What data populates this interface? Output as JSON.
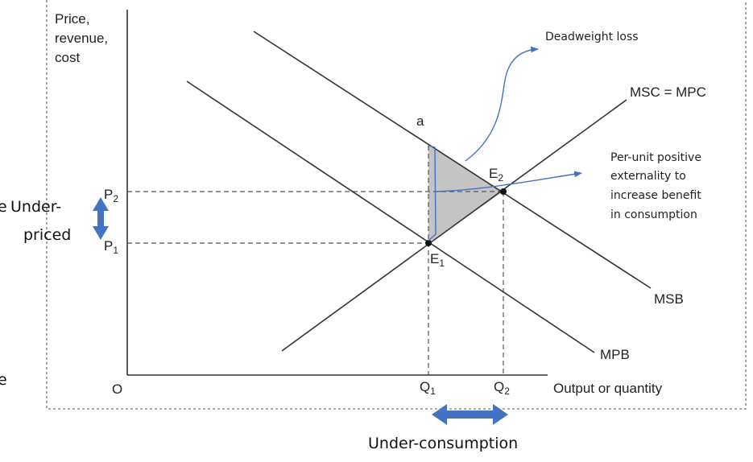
{
  "axes": {
    "y_label_lines": [
      "Price,",
      "revenue,",
      "cost"
    ],
    "x_label": "Output or quantity",
    "origin": "O"
  },
  "curves": {
    "msb": "MSB",
    "mpb": "MPB",
    "msc": "MSC = MPC"
  },
  "points": {
    "a": "a",
    "e1": {
      "base": "E",
      "sub": "1"
    },
    "e2": {
      "base": "E",
      "sub": "2"
    }
  },
  "ticks": {
    "p1": {
      "base": "P",
      "sub": "1"
    },
    "p2": {
      "base": "P",
      "sub": "2"
    },
    "q1": {
      "base": "Q",
      "sub": "1"
    },
    "q2": {
      "base": "Q",
      "sub": "2"
    }
  },
  "annotations": {
    "deadweight_loss": "Deadweight loss",
    "externality_lines": [
      "Per-unit positive",
      "externality to",
      "increase benefit",
      "in consumption"
    ],
    "underpriced_left_fragment": "e",
    "underpriced_lines": [
      "Under-",
      "priced"
    ],
    "bottom_left_fragment": "e",
    "under_consumption": "Under-consumption"
  },
  "colors": {
    "shade": "#c4c4c4",
    "arrow_blue": "#4472c4",
    "line": "#333333"
  }
}
